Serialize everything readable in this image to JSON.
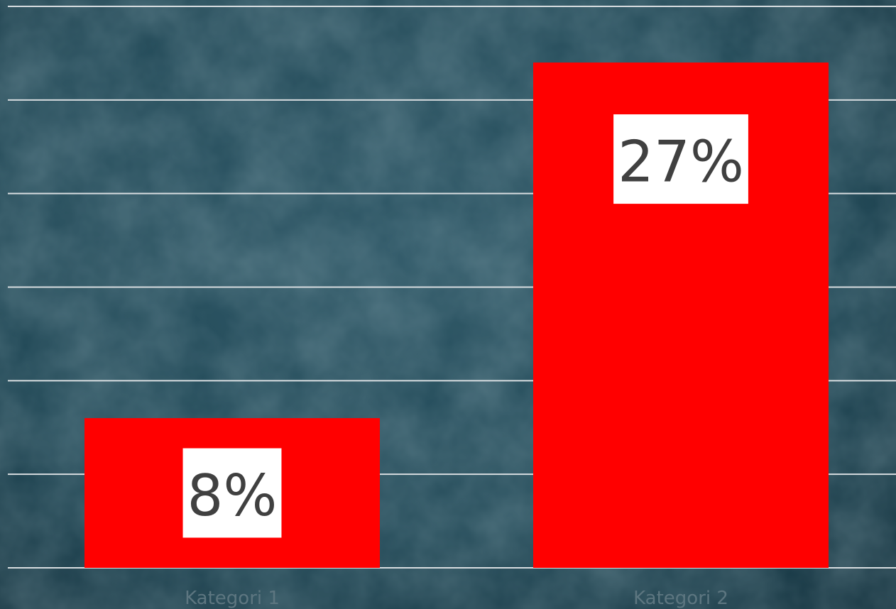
{
  "chart_data": {
    "type": "bar",
    "categories": [
      "Kategori 1",
      "Kategori 2"
    ],
    "values": [
      8,
      27
    ],
    "value_labels": [
      "8%",
      "27%"
    ],
    "color": "#ff0000",
    "ylim": [
      0,
      30
    ],
    "yticks": [
      0,
      5,
      10,
      15,
      20,
      25,
      30
    ],
    "grid": true
  }
}
